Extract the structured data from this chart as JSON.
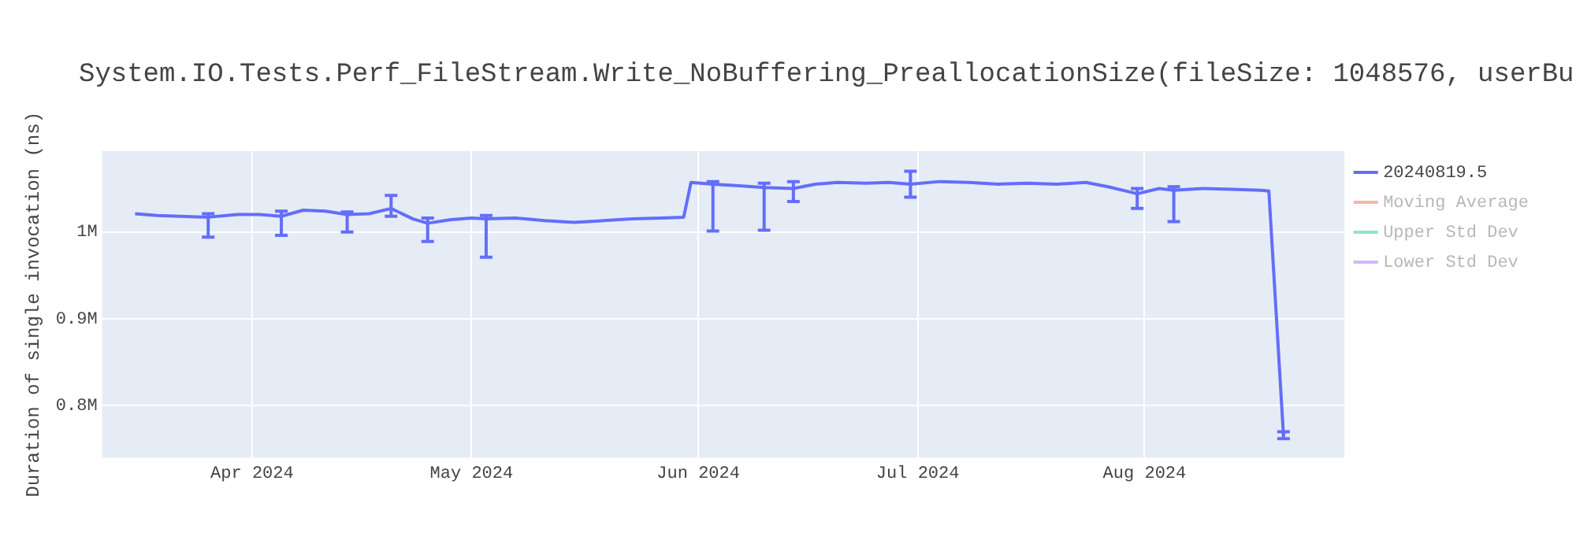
{
  "chart_data": {
    "type": "line",
    "title": "System.IO.Tests.Perf_FileStream.Write_NoBuffering_PreallocationSize(fileSize: 1048576, userBu",
    "ylabel": "Duration of single invocation (ns)",
    "x": [
      "2024-03-16",
      "2024-03-19",
      "2024-03-22",
      "2024-03-26",
      "2024-03-30",
      "2024-04-02",
      "2024-04-05",
      "2024-04-08",
      "2024-04-11",
      "2024-04-14",
      "2024-04-17",
      "2024-04-20",
      "2024-04-23",
      "2024-04-25",
      "2024-04-28",
      "2024-05-01",
      "2024-05-03",
      "2024-05-07",
      "2024-05-11",
      "2024-05-15",
      "2024-05-19",
      "2024-05-23",
      "2024-05-27",
      "2024-05-30",
      "2024-05-31",
      "2024-06-03",
      "2024-06-07",
      "2024-06-10",
      "2024-06-14",
      "2024-06-17",
      "2024-06-20",
      "2024-06-24",
      "2024-06-27",
      "2024-06-30",
      "2024-07-04",
      "2024-07-08",
      "2024-07-12",
      "2024-07-16",
      "2024-07-20",
      "2024-07-24",
      "2024-07-27",
      "2024-07-30",
      "2024-07-31",
      "2024-08-03",
      "2024-08-05",
      "2024-08-09",
      "2024-08-13",
      "2024-08-17",
      "2024-08-18",
      "2024-08-20"
    ],
    "series": [
      {
        "name": "20240819.5",
        "color": "#636efa",
        "values": [
          1021000,
          1019000,
          1018000,
          1017000,
          1020000,
          1020000,
          1018000,
          1025000,
          1024000,
          1020000,
          1021000,
          1027000,
          1015000,
          1010000,
          1014000,
          1016000,
          1015000,
          1016000,
          1013000,
          1011000,
          1013000,
          1015000,
          1016000,
          1017000,
          1057000,
          1055000,
          1053000,
          1051000,
          1050000,
          1055000,
          1057000,
          1056000,
          1057000,
          1055000,
          1058000,
          1057000,
          1055000,
          1056000,
          1055000,
          1057000,
          1052000,
          1046000,
          1044000,
          1050000,
          1048000,
          1050000,
          1049000,
          1048000,
          1047000,
          765000
        ],
        "errors": [
          null,
          null,
          null,
          [
            994000,
            1021000
          ],
          null,
          null,
          [
            996000,
            1024000
          ],
          null,
          null,
          [
            1000000,
            1023000
          ],
          null,
          [
            1018000,
            1042000
          ],
          null,
          [
            989000,
            1016000
          ],
          null,
          null,
          [
            971000,
            1019000
          ],
          null,
          null,
          null,
          null,
          null,
          null,
          null,
          null,
          [
            1001000,
            1058000
          ],
          null,
          [
            1002000,
            1056000
          ],
          [
            1035000,
            1058000
          ],
          null,
          null,
          null,
          null,
          [
            1040000,
            1070000
          ],
          null,
          null,
          null,
          null,
          null,
          null,
          null,
          null,
          [
            1027000,
            1050000
          ],
          null,
          [
            1012000,
            1052000
          ],
          null,
          null,
          null,
          null,
          [
            762000,
            770000
          ]
        ]
      },
      {
        "name": "Moving Average",
        "color": "#f7b5a8",
        "values": [
          null,
          null,
          null,
          null,
          null,
          null,
          null,
          null,
          null,
          null,
          null,
          null,
          null,
          null,
          null,
          null,
          null,
          null,
          null,
          null,
          null,
          null,
          null,
          null,
          null,
          null,
          null,
          null,
          null,
          null,
          null,
          null,
          null,
          null,
          null,
          null,
          null,
          null,
          null,
          null,
          null,
          null,
          null,
          null,
          null,
          null,
          null,
          null,
          null,
          null
        ]
      },
      {
        "name": "Upper Std Dev",
        "color": "#8fe6c8",
        "values": [
          null,
          null,
          null,
          null,
          null,
          null,
          null,
          null,
          null,
          null,
          null,
          null,
          null,
          null,
          null,
          null,
          null,
          null,
          null,
          null,
          null,
          null,
          null,
          null,
          null,
          null,
          null,
          null,
          null,
          null,
          null,
          null,
          null,
          null,
          null,
          null,
          null,
          null,
          null,
          null,
          null,
          null,
          null,
          null,
          null,
          null,
          null,
          null,
          null,
          null
        ]
      },
      {
        "name": "Lower Std Dev",
        "color": "#d0b8fb",
        "values": [
          null,
          null,
          null,
          null,
          null,
          null,
          null,
          null,
          null,
          null,
          null,
          null,
          null,
          null,
          null,
          null,
          null,
          null,
          null,
          null,
          null,
          null,
          null,
          null,
          null,
          null,
          null,
          null,
          null,
          null,
          null,
          null,
          null,
          null,
          null,
          null,
          null,
          null,
          null,
          null,
          null,
          null,
          null,
          null,
          null,
          null,
          null,
          null,
          null,
          null
        ]
      }
    ],
    "xlim": [
      "2024-03-11T12:00",
      "2024-08-28T08:00"
    ],
    "xticks": [
      {
        "value": "2024-04-01",
        "label": "Apr 2024"
      },
      {
        "value": "2024-05-01",
        "label": "May 2024"
      },
      {
        "value": "2024-06-01",
        "label": "Jun 2024"
      },
      {
        "value": "2024-07-01",
        "label": "Jul 2024"
      },
      {
        "value": "2024-08-01",
        "label": "Aug 2024"
      }
    ],
    "ylim": [
      740000,
      1093000
    ],
    "yticks": [
      {
        "value": 800000,
        "label": "0.8M"
      },
      {
        "value": 900000,
        "label": "0.9M"
      },
      {
        "value": 1000000,
        "label": "1M"
      }
    ],
    "grid": true,
    "legend": "top right",
    "marker": "none",
    "line_style": "solid"
  }
}
